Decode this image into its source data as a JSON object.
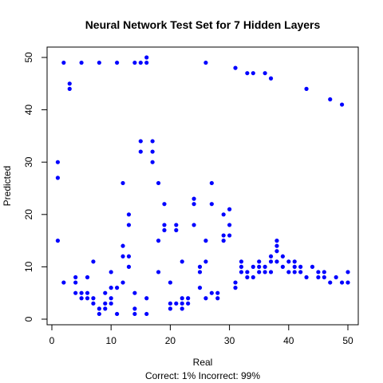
{
  "chart_data": {
    "type": "scatter",
    "title": "Neural Network Test Set for 7 Hidden Layers",
    "xlabel": "Real",
    "ylabel": "Predicted",
    "subtitle": "Correct: 1% Incorrect: 99%",
    "xlim": [
      0,
      50
    ],
    "ylim": [
      0,
      50
    ],
    "xticks": [
      0,
      10,
      20,
      30,
      40,
      50
    ],
    "yticks": [
      0,
      10,
      20,
      30,
      40,
      50
    ],
    "grid": false,
    "point_color": "#0000ff",
    "points": [
      [
        1,
        30
      ],
      [
        1,
        27
      ],
      [
        1,
        15
      ],
      [
        2,
        49
      ],
      [
        2,
        7
      ],
      [
        3,
        45
      ],
      [
        3,
        44
      ],
      [
        4,
        8
      ],
      [
        4,
        7
      ],
      [
        4,
        5
      ],
      [
        5,
        49
      ],
      [
        5,
        5
      ],
      [
        5,
        4
      ],
      [
        6,
        8
      ],
      [
        6,
        5
      ],
      [
        6,
        4
      ],
      [
        7,
        11
      ],
      [
        7,
        4
      ],
      [
        7,
        3
      ],
      [
        8,
        49
      ],
      [
        8,
        2
      ],
      [
        8,
        1
      ],
      [
        9,
        5
      ],
      [
        9,
        3
      ],
      [
        9,
        2
      ],
      [
        10,
        9
      ],
      [
        10,
        6
      ],
      [
        10,
        4
      ],
      [
        10,
        3
      ],
      [
        11,
        49
      ],
      [
        11,
        6
      ],
      [
        11,
        1
      ],
      [
        12,
        26
      ],
      [
        12,
        14
      ],
      [
        12,
        12
      ],
      [
        12,
        7
      ],
      [
        13,
        20
      ],
      [
        13,
        18
      ],
      [
        13,
        12
      ],
      [
        13,
        10
      ],
      [
        14,
        49
      ],
      [
        14,
        5
      ],
      [
        14,
        2
      ],
      [
        14,
        1
      ],
      [
        15,
        34
      ],
      [
        15,
        32
      ],
      [
        15,
        49
      ],
      [
        16,
        50
      ],
      [
        16,
        49
      ],
      [
        16,
        4
      ],
      [
        16,
        1
      ],
      [
        17,
        34
      ],
      [
        17,
        32
      ],
      [
        17,
        30
      ],
      [
        18,
        26
      ],
      [
        18,
        15
      ],
      [
        18,
        9
      ],
      [
        19,
        22
      ],
      [
        19,
        18
      ],
      [
        19,
        17
      ],
      [
        20,
        7
      ],
      [
        20,
        3
      ],
      [
        20,
        2
      ],
      [
        21,
        18
      ],
      [
        21,
        17
      ],
      [
        21,
        3
      ],
      [
        22,
        11
      ],
      [
        22,
        4
      ],
      [
        22,
        3
      ],
      [
        22,
        2
      ],
      [
        23,
        4
      ],
      [
        23,
        3
      ],
      [
        24,
        23
      ],
      [
        24,
        22
      ],
      [
        24,
        18
      ],
      [
        25,
        10
      ],
      [
        25,
        9
      ],
      [
        25,
        6
      ],
      [
        26,
        49
      ],
      [
        26,
        15
      ],
      [
        26,
        11
      ],
      [
        26,
        4
      ],
      [
        27,
        26
      ],
      [
        27,
        22
      ],
      [
        27,
        5
      ],
      [
        28,
        5
      ],
      [
        28,
        4
      ],
      [
        29,
        20
      ],
      [
        29,
        16
      ],
      [
        29,
        15
      ],
      [
        30,
        21
      ],
      [
        30,
        18
      ],
      [
        30,
        16
      ],
      [
        31,
        48
      ],
      [
        31,
        7
      ],
      [
        31,
        6
      ],
      [
        32,
        11
      ],
      [
        32,
        10
      ],
      [
        32,
        9
      ],
      [
        33,
        47
      ],
      [
        33,
        9
      ],
      [
        33,
        8
      ],
      [
        34,
        47
      ],
      [
        34,
        10
      ],
      [
        34,
        8
      ],
      [
        35,
        11
      ],
      [
        35,
        10
      ],
      [
        35,
        9
      ],
      [
        36,
        47
      ],
      [
        36,
        10
      ],
      [
        36,
        9
      ],
      [
        37,
        46
      ],
      [
        37,
        12
      ],
      [
        37,
        11
      ],
      [
        37,
        9
      ],
      [
        38,
        15
      ],
      [
        38,
        14
      ],
      [
        38,
        13
      ],
      [
        38,
        11
      ],
      [
        39,
        12
      ],
      [
        39,
        10
      ],
      [
        40,
        11
      ],
      [
        40,
        9
      ],
      [
        41,
        11
      ],
      [
        41,
        10
      ],
      [
        41,
        9
      ],
      [
        42,
        10
      ],
      [
        42,
        9
      ],
      [
        43,
        44
      ],
      [
        43,
        8
      ],
      [
        44,
        10
      ],
      [
        45,
        9
      ],
      [
        45,
        8
      ],
      [
        46,
        9
      ],
      [
        46,
        8
      ],
      [
        47,
        42
      ],
      [
        47,
        7
      ],
      [
        48,
        8
      ],
      [
        49,
        41
      ],
      [
        49,
        7
      ],
      [
        50,
        9
      ],
      [
        50,
        7
      ]
    ]
  }
}
